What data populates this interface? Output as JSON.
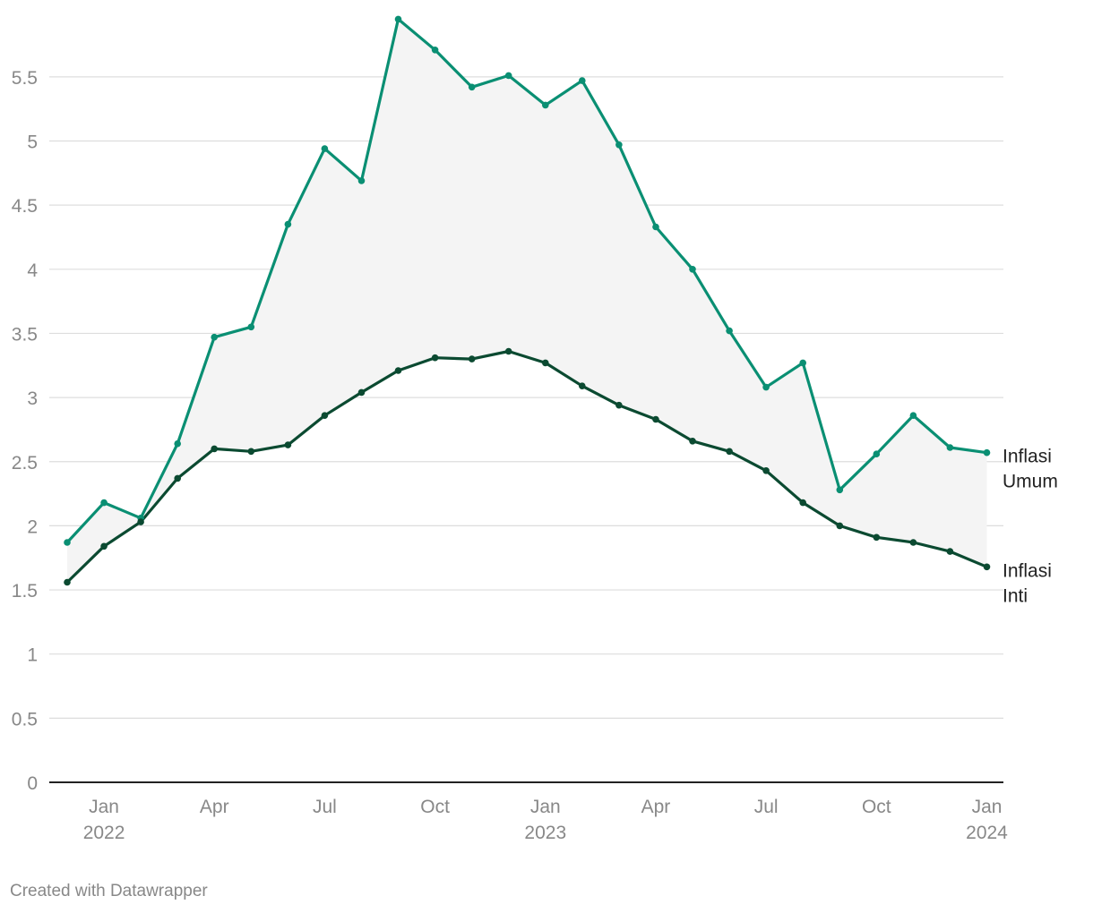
{
  "chart_data": {
    "type": "line",
    "x": [
      "2021-12",
      "2022-01",
      "2022-02",
      "2022-03",
      "2022-04",
      "2022-05",
      "2022-06",
      "2022-07",
      "2022-08",
      "2022-09",
      "2022-10",
      "2022-11",
      "2022-12",
      "2023-01",
      "2023-02",
      "2023-03",
      "2023-04",
      "2023-05",
      "2023-06",
      "2023-07",
      "2023-08",
      "2023-09",
      "2023-10",
      "2023-11",
      "2023-12",
      "2024-01"
    ],
    "series": [
      {
        "name": "Inflasi Umum",
        "color": "#0a8f73",
        "values": [
          1.87,
          2.18,
          2.06,
          2.64,
          3.47,
          3.55,
          4.35,
          4.94,
          4.69,
          5.95,
          5.71,
          5.42,
          5.51,
          5.28,
          5.47,
          4.97,
          4.33,
          4.0,
          3.52,
          3.08,
          3.27,
          2.28,
          2.56,
          2.86,
          2.61,
          2.57
        ]
      },
      {
        "name": "Inflasi Inti",
        "color": "#0b4a31",
        "values": [
          1.56,
          1.84,
          2.03,
          2.37,
          2.6,
          2.58,
          2.63,
          2.86,
          3.04,
          3.21,
          3.31,
          3.3,
          3.36,
          3.27,
          3.09,
          2.94,
          2.83,
          2.66,
          2.58,
          2.43,
          2.18,
          2.0,
          1.91,
          1.87,
          1.8,
          1.68
        ]
      }
    ],
    "ylim": [
      0,
      6
    ],
    "yticks": [
      "0",
      "0.5",
      "1",
      "1.5",
      "2",
      "2.5",
      "3",
      "3.5",
      "4",
      "4.5",
      "5",
      "5.5"
    ],
    "xticks": [
      {
        "label": "Jan",
        "sub": "2022",
        "x": "2022-01"
      },
      {
        "label": "Apr",
        "sub": "",
        "x": "2022-04"
      },
      {
        "label": "Jul",
        "sub": "",
        "x": "2022-07"
      },
      {
        "label": "Oct",
        "sub": "",
        "x": "2022-10"
      },
      {
        "label": "Jan",
        "sub": "2023",
        "x": "2023-01"
      },
      {
        "label": "Apr",
        "sub": "",
        "x": "2023-04"
      },
      {
        "label": "Jul",
        "sub": "",
        "x": "2023-07"
      },
      {
        "label": "Oct",
        "sub": "",
        "x": "2023-10"
      },
      {
        "label": "Jan",
        "sub": "2024",
        "x": "2024-01"
      }
    ],
    "labels": [
      {
        "lines": [
          "Inflasi",
          "Umum"
        ]
      },
      {
        "lines": [
          "Inflasi",
          "Inti"
        ]
      }
    ],
    "band_color": "#f4f4f4",
    "grid": true
  },
  "footer": {
    "credit": "Created with Datawrapper"
  }
}
